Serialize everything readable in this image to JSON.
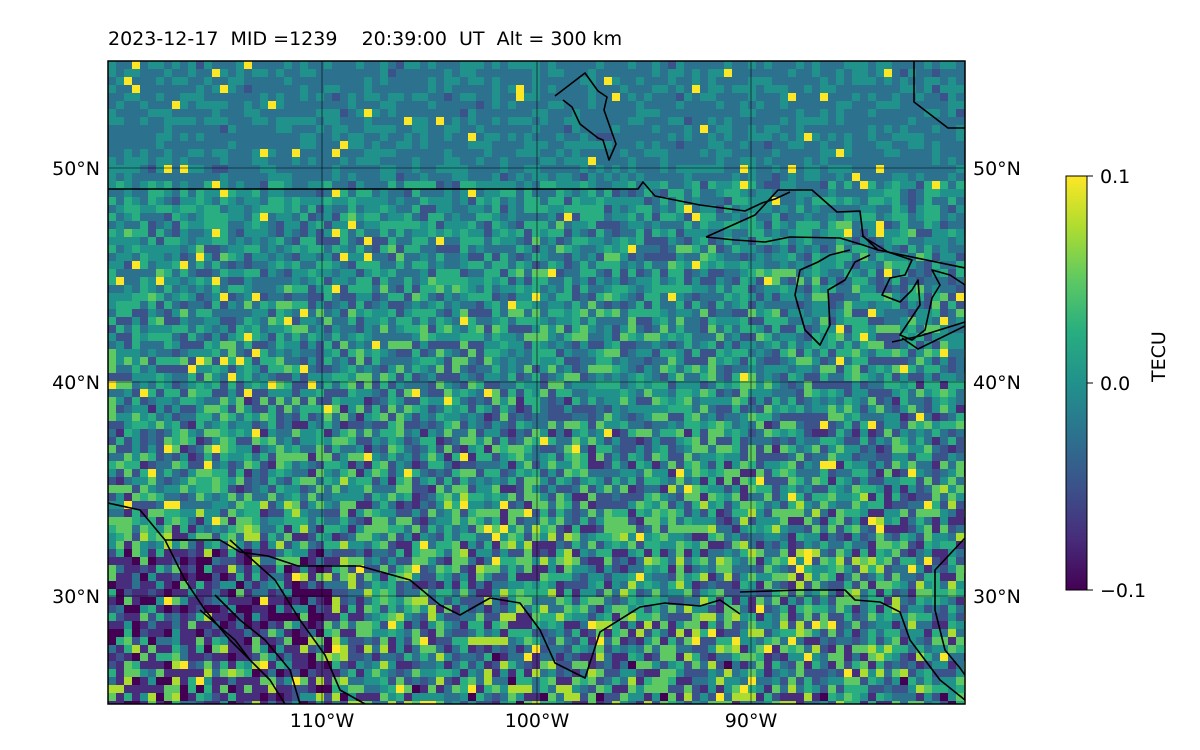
{
  "title": "2023-12-17  MID =1239    20:39:00  UT  Alt = 300 km",
  "map": {
    "lon_range": [
      -120,
      -80
    ],
    "lat_range": [
      25,
      55
    ],
    "lat_ticks": [
      {
        "value": 50,
        "label": "50°N"
      },
      {
        "value": 40,
        "label": "40°N"
      },
      {
        "value": 30,
        "label": "30°N"
      }
    ],
    "lon_ticks": [
      {
        "value": -110,
        "label": "110°W"
      },
      {
        "value": -100,
        "label": "100°W"
      },
      {
        "value": -90,
        "label": "90°W"
      }
    ],
    "gridlines": true
  },
  "colorbar": {
    "label": "TECU",
    "colormap": "viridis",
    "ticks": [
      {
        "value": 0.1,
        "label": "0.1"
      },
      {
        "value": 0.0,
        "label": "0.0"
      },
      {
        "value": -0.1,
        "label": "−0.1"
      }
    ],
    "range": [
      -0.1,
      0.1
    ]
  },
  "colors": {
    "viridis_low": "#440154",
    "viridis_mid": "#21918c",
    "viridis_high": "#fde725",
    "coastline": "#000000"
  }
}
